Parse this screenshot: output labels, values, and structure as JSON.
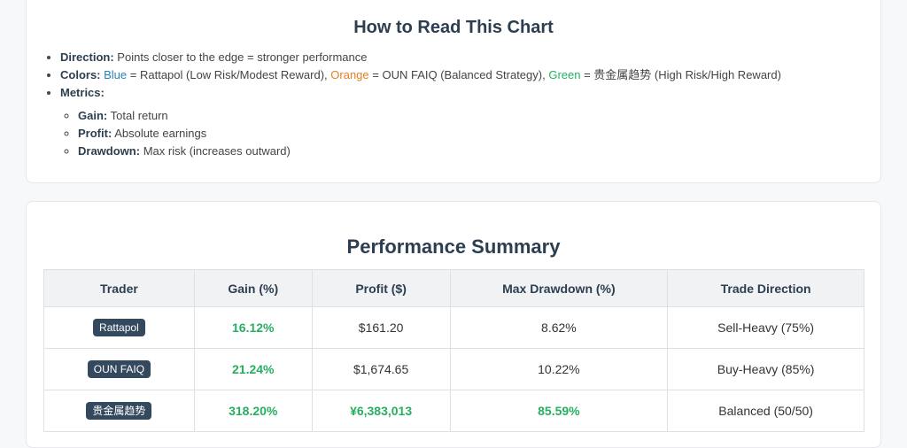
{
  "guide": {
    "title": "How to Read This Chart",
    "direction": {
      "label": "Direction:",
      "text": "Points closer to the edge = stronger performance"
    },
    "colors": {
      "label": "Colors:",
      "blue_word": "Blue",
      "blue_text": " = Rattapol (Low Risk/Modest Reward), ",
      "orange_word": "Orange",
      "orange_text": " = OUN FAIQ (Balanced Strategy), ",
      "green_word": "Green",
      "green_text": " = 贵金属趋势 (High Risk/High Reward)",
      "blue_hex": "#2980b9",
      "orange_hex": "#e67e22",
      "green_hex": "#27ae60"
    },
    "metrics": {
      "label": "Metrics:",
      "items": [
        {
          "label": "Gain:",
          "text": "Total return"
        },
        {
          "label": "Profit:",
          "text": "Absolute earnings"
        },
        {
          "label": "Drawdown:",
          "text": "Max risk (increases outward)"
        }
      ]
    }
  },
  "summary": {
    "title": "Performance Summary",
    "headers": [
      "Trader",
      "Gain (%)",
      "Profit ($)",
      "Max Drawdown (%)",
      "Trade Direction"
    ],
    "rows": [
      {
        "trader": "Rattapol",
        "gain": "16.12%",
        "profit": "$161.20",
        "drawdown": "8.62%",
        "direction": "Sell-Heavy (75%)"
      },
      {
        "trader": "OUN FAIQ",
        "gain": "21.24%",
        "profit": "$1,674.65",
        "drawdown": "10.22%",
        "direction": "Buy-Heavy (85%)"
      },
      {
        "trader": "贵金属趋势",
        "gain": "318.20%",
        "profit": "¥6,383,013",
        "drawdown": "85.59%",
        "direction": "Balanced (50/50)"
      }
    ]
  }
}
